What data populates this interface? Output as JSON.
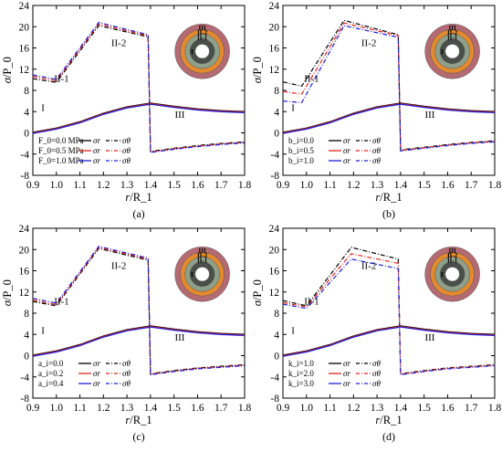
{
  "colors": {
    "black": "#000000",
    "red": "#e0251b",
    "blue": "#1f1fd6",
    "ring_iii": "#b46a72",
    "ring_ii2": "#e38a2f",
    "ring_ii1": "#8fa08a",
    "ring_i": "#4a4f4a"
  },
  "chart_data": [
    {
      "type": "line",
      "panel_label": "(a)",
      "xlabel": "r/R_1",
      "ylabel": "σ/P_0",
      "xlim": [
        0.9,
        1.8
      ],
      "ylim": [
        -8,
        24
      ],
      "xticks": [
        "0.9",
        "1.0",
        "1.1",
        "1.2",
        "1.3",
        "1.4",
        "1.5",
        "1.6",
        "1.7",
        "1.8"
      ],
      "yticks": [
        "-8",
        "-4",
        "0",
        "4",
        "8",
        "12",
        "16",
        "20",
        "24"
      ],
      "regions": [
        "I",
        "II-1",
        "II-2",
        "III"
      ],
      "rings": [
        "III",
        "II-2",
        "II-1",
        "I"
      ],
      "legend": [
        {
          "param": "F_0=0.0 MPa",
          "r": "σr",
          "theta": "σθ"
        },
        {
          "param": "F_0=0.5 MPa",
          "r": "σr",
          "theta": "σθ"
        },
        {
          "param": "F_0=1.0 MPa",
          "r": "σr",
          "theta": "σθ"
        }
      ],
      "sigma_r": [
        [
          0.9,
          0
        ],
        [
          1.0,
          0.8
        ],
        [
          1.1,
          2
        ],
        [
          1.2,
          3.6
        ],
        [
          1.3,
          4.8
        ],
        [
          1.4,
          5.5
        ],
        [
          1.5,
          4.9
        ],
        [
          1.6,
          4.4
        ],
        [
          1.7,
          4.1
        ],
        [
          1.8,
          3.9
        ]
      ],
      "sigma_theta": [
        [
          [
            0.9,
            10.2
          ],
          [
            1.0,
            9.5
          ],
          [
            1.18,
            20.2
          ],
          [
            1.39,
            18.1
          ],
          [
            1.4,
            -3.5
          ],
          [
            1.5,
            -2.9
          ],
          [
            1.6,
            -2.4
          ],
          [
            1.7,
            -2.0
          ],
          [
            1.8,
            -1.7
          ]
        ],
        [
          [
            0.9,
            10.6
          ],
          [
            1.0,
            9.8
          ],
          [
            1.18,
            20.5
          ],
          [
            1.39,
            18.3
          ],
          [
            1.4,
            -3.6
          ],
          [
            1.5,
            -3.0
          ],
          [
            1.6,
            -2.5
          ],
          [
            1.7,
            -2.1
          ],
          [
            1.8,
            -1.8
          ]
        ],
        [
          [
            0.9,
            10.9
          ],
          [
            1.0,
            10.1
          ],
          [
            1.18,
            20.8
          ],
          [
            1.39,
            18.5
          ],
          [
            1.4,
            -3.7
          ],
          [
            1.5,
            -3.1
          ],
          [
            1.6,
            -2.6
          ],
          [
            1.7,
            -2.2
          ],
          [
            1.8,
            -1.9
          ]
        ]
      ]
    },
    {
      "type": "line",
      "panel_label": "(b)",
      "xlabel": "r/R_1",
      "ylabel": "σ/P_0",
      "xlim": [
        0.9,
        1.8
      ],
      "ylim": [
        -8,
        24
      ],
      "xticks": [
        "0.9",
        "1.0",
        "1.1",
        "1.2",
        "1.3",
        "1.4",
        "1.5",
        "1.6",
        "1.7",
        "1.8"
      ],
      "yticks": [
        "-8",
        "-4",
        "0",
        "4",
        "8",
        "12",
        "16",
        "20",
        "24"
      ],
      "regions": [
        "I",
        "II-1",
        "II-2",
        "III"
      ],
      "rings": [
        "III",
        "II-2",
        "II-1",
        "I"
      ],
      "legend": [
        {
          "param": "b_i=0.0",
          "r": "σr",
          "theta": "σθ"
        },
        {
          "param": "b_i=0.5",
          "r": "σr",
          "theta": "σθ"
        },
        {
          "param": "b_i=1.0",
          "r": "σr",
          "theta": "σθ"
        }
      ],
      "sigma_r": [
        [
          0.9,
          0
        ],
        [
          1.0,
          0.8
        ],
        [
          1.1,
          2
        ],
        [
          1.2,
          3.6
        ],
        [
          1.3,
          4.8
        ],
        [
          1.4,
          5.5
        ],
        [
          1.5,
          4.9
        ],
        [
          1.6,
          4.4
        ],
        [
          1.7,
          4.1
        ],
        [
          1.8,
          3.9
        ]
      ],
      "sigma_theta": [
        [
          [
            0.9,
            9.6
          ],
          [
            0.98,
            8.8
          ],
          [
            1.16,
            21.2
          ],
          [
            1.39,
            18.5
          ],
          [
            1.4,
            -3.2
          ],
          [
            1.5,
            -2.7
          ],
          [
            1.6,
            -2.2
          ],
          [
            1.7,
            -1.8
          ],
          [
            1.8,
            -1.5
          ]
        ],
        [
          [
            0.9,
            7.8
          ],
          [
            0.98,
            7.3
          ],
          [
            1.16,
            20.7
          ],
          [
            1.39,
            18.3
          ],
          [
            1.4,
            -3.3
          ],
          [
            1.5,
            -2.8
          ],
          [
            1.6,
            -2.3
          ],
          [
            1.7,
            -1.9
          ],
          [
            1.8,
            -1.6
          ]
        ],
        [
          [
            0.9,
            6.0
          ],
          [
            0.98,
            5.7
          ],
          [
            1.16,
            20.2
          ],
          [
            1.39,
            18.0
          ],
          [
            1.4,
            -3.4
          ],
          [
            1.5,
            -2.9
          ],
          [
            1.6,
            -2.4
          ],
          [
            1.7,
            -2.0
          ],
          [
            1.8,
            -1.7
          ]
        ]
      ]
    },
    {
      "type": "line",
      "panel_label": "(c)",
      "xlabel": "r/R_1",
      "ylabel": "σ/P_0",
      "xlim": [
        0.9,
        1.8
      ],
      "ylim": [
        -8,
        24
      ],
      "xticks": [
        "0.9",
        "1.0",
        "1.1",
        "1.2",
        "1.3",
        "1.4",
        "1.5",
        "1.6",
        "1.7",
        "1.8"
      ],
      "yticks": [
        "-8",
        "-4",
        "0",
        "4",
        "8",
        "12",
        "16",
        "20",
        "24"
      ],
      "regions": [
        "I",
        "II-1",
        "II-2",
        "III"
      ],
      "rings": [
        "III",
        "II-2",
        "II-1",
        "I"
      ],
      "legend": [
        {
          "param": "a_i=0.0",
          "r": "σr",
          "theta": "σθ"
        },
        {
          "param": "a_i=0.2",
          "r": "σr",
          "theta": "σθ"
        },
        {
          "param": "a_i=0.4",
          "r": "σr",
          "theta": "σθ"
        }
      ],
      "sigma_r": [
        [
          0.9,
          0
        ],
        [
          1.0,
          0.8
        ],
        [
          1.1,
          2
        ],
        [
          1.2,
          3.6
        ],
        [
          1.3,
          4.8
        ],
        [
          1.4,
          5.5
        ],
        [
          1.5,
          4.9
        ],
        [
          1.6,
          4.4
        ],
        [
          1.7,
          4.1
        ],
        [
          1.8,
          3.9
        ]
      ],
      "sigma_theta": [
        [
          [
            0.9,
            10.2
          ],
          [
            1.0,
            9.4
          ],
          [
            1.18,
            20.2
          ],
          [
            1.39,
            18.0
          ],
          [
            1.4,
            -3.4
          ],
          [
            1.5,
            -2.8
          ],
          [
            1.6,
            -2.3
          ],
          [
            1.7,
            -2.0
          ],
          [
            1.8,
            -1.7
          ]
        ],
        [
          [
            0.9,
            10.5
          ],
          [
            1.0,
            9.6
          ],
          [
            1.18,
            20.4
          ],
          [
            1.39,
            18.2
          ],
          [
            1.4,
            -3.5
          ],
          [
            1.5,
            -2.9
          ],
          [
            1.6,
            -2.4
          ],
          [
            1.7,
            -2.1
          ],
          [
            1.8,
            -1.8
          ]
        ],
        [
          [
            0.9,
            10.8
          ],
          [
            1.0,
            9.9
          ],
          [
            1.18,
            20.6
          ],
          [
            1.39,
            18.4
          ],
          [
            1.4,
            -3.6
          ],
          [
            1.5,
            -3.0
          ],
          [
            1.6,
            -2.5
          ],
          [
            1.7,
            -2.2
          ],
          [
            1.8,
            -1.9
          ]
        ]
      ]
    },
    {
      "type": "line",
      "panel_label": "(d)",
      "xlabel": "r/R_1",
      "ylabel": "σ/P_0",
      "xlim": [
        0.9,
        1.8
      ],
      "ylim": [
        -8,
        24
      ],
      "xticks": [
        "0.9",
        "1.0",
        "1.1",
        "1.2",
        "1.3",
        "1.4",
        "1.5",
        "1.6",
        "1.7",
        "1.8"
      ],
      "yticks": [
        "-8",
        "-4",
        "0",
        "4",
        "8",
        "12",
        "16",
        "20",
        "24"
      ],
      "regions": [
        "I",
        "II-1",
        "II-2",
        "III"
      ],
      "rings": [
        "III",
        "II-2",
        "II-1",
        "I"
      ],
      "legend": [
        {
          "param": "k_i=1.0",
          "r": "σr",
          "theta": "σθ"
        },
        {
          "param": "k_i=2.0",
          "r": "σr",
          "theta": "σθ"
        },
        {
          "param": "k_i=3.0",
          "r": "σr",
          "theta": "σθ"
        }
      ],
      "sigma_r": [
        [
          0.9,
          0
        ],
        [
          1.0,
          0.8
        ],
        [
          1.1,
          2
        ],
        [
          1.2,
          3.6
        ],
        [
          1.3,
          4.8
        ],
        [
          1.4,
          5.5
        ],
        [
          1.5,
          4.9
        ],
        [
          1.6,
          4.4
        ],
        [
          1.7,
          4.1
        ],
        [
          1.8,
          3.9
        ]
      ],
      "sigma_theta": [
        [
          [
            0.9,
            10.4
          ],
          [
            1.0,
            9.4
          ],
          [
            1.19,
            20.4
          ],
          [
            1.39,
            18.2
          ],
          [
            1.4,
            -3.4
          ],
          [
            1.5,
            -2.8
          ],
          [
            1.6,
            -2.3
          ],
          [
            1.7,
            -2.0
          ],
          [
            1.8,
            -1.7
          ]
        ],
        [
          [
            0.9,
            10.0
          ],
          [
            1.0,
            9.2
          ],
          [
            1.19,
            19.2
          ],
          [
            1.39,
            17.4
          ],
          [
            1.4,
            -3.5
          ],
          [
            1.5,
            -2.9
          ],
          [
            1.6,
            -2.4
          ],
          [
            1.7,
            -2.1
          ],
          [
            1.8,
            -1.8
          ]
        ],
        [
          [
            0.9,
            9.7
          ],
          [
            1.0,
            8.9
          ],
          [
            1.19,
            18.2
          ],
          [
            1.39,
            16.4
          ],
          [
            1.4,
            -3.6
          ],
          [
            1.5,
            -3.0
          ],
          [
            1.6,
            -2.5
          ],
          [
            1.7,
            -2.2
          ],
          [
            1.8,
            -1.9
          ]
        ]
      ]
    }
  ]
}
